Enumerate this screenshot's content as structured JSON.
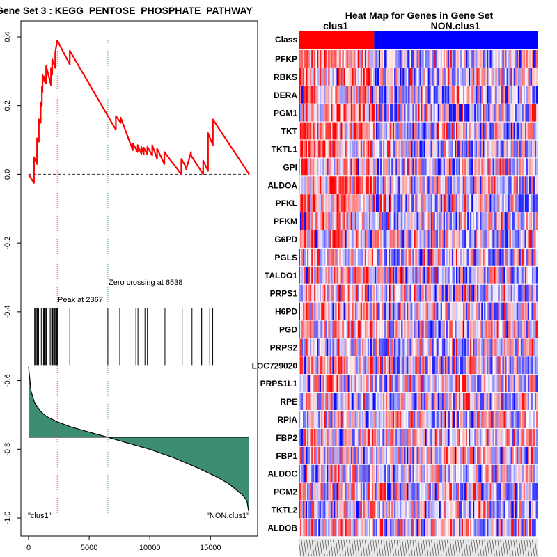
{
  "chart_data": [
    {
      "type": "line",
      "title": "Gene Set  3 : KEGG_PENTOSE_PHOSPHATE_PATHWAY",
      "xlim": [
        0,
        18200
      ],
      "ylim": [
        -1.0,
        0.4
      ],
      "x_ticks": [
        0,
        5000,
        10000,
        15000
      ],
      "y_ticks": [
        -1.0,
        -0.8,
        -0.6,
        -0.4,
        -0.2,
        0.0,
        0.2,
        0.4
      ],
      "running_es": {
        "x": [
          0,
          450,
          450,
          700,
          700,
          850,
          850,
          1000,
          1000,
          1100,
          1100,
          1150,
          1150,
          1300,
          1300,
          1450,
          1450,
          1850,
          1850,
          1950,
          1950,
          2200,
          2200,
          2367,
          2367,
          3400,
          3400,
          6538,
          7200,
          7200,
          7600,
          7600,
          8600,
          8600,
          9000,
          9000,
          9300,
          9300,
          9500,
          9500,
          9800,
          9800,
          10200,
          10200,
          10600,
          10600,
          11200,
          11200,
          12600,
          12600,
          13000,
          13000,
          13400,
          13400,
          14400,
          14400,
          14800,
          14800,
          15200,
          15200,
          18200
        ],
        "y": [
          0.0,
          -0.025,
          0.05,
          0.03,
          0.105,
          0.095,
          0.16,
          0.15,
          0.21,
          0.2,
          0.255,
          0.24,
          0.29,
          0.27,
          0.285,
          0.265,
          0.315,
          0.26,
          0.31,
          0.29,
          0.335,
          0.31,
          0.355,
          0.39,
          0.39,
          0.32,
          0.36,
          0.17,
          0.13,
          0.17,
          0.15,
          0.165,
          0.07,
          0.09,
          0.065,
          0.085,
          0.06,
          0.08,
          0.058,
          0.078,
          0.058,
          0.08,
          0.055,
          0.085,
          0.045,
          0.075,
          0.03,
          0.065,
          0.0,
          0.045,
          0.02,
          0.015,
          0.065,
          0.055,
          0.0,
          0.04,
          0.01,
          0.12,
          0.085,
          0.16,
          0.0
        ]
      },
      "baseline_y": 0.0,
      "peak": {
        "x": 2367,
        "label": "Peak at 2367"
      },
      "zero_crossing": {
        "x": 6538,
        "label": "Zero crossing at 6538"
      },
      "hits": [
        500,
        560,
        640,
        720,
        830,
        1050,
        1120,
        1230,
        1290,
        1420,
        1460,
        1520,
        1720,
        1830,
        1980,
        2060,
        2160,
        2230,
        2290,
        2340,
        2380,
        3400,
        6540,
        7520,
        8850,
        9020,
        9600,
        9800,
        10420,
        11250,
        12670,
        13480,
        14230,
        14280,
        14940,
        15190
      ],
      "hits_band": [
        -0.39,
        -0.555
      ],
      "ranked_metric": {
        "baseline_y": -0.765,
        "x": [
          0,
          200,
          500,
          1000,
          1500,
          2367,
          3500,
          5000,
          6538,
          8000,
          10000,
          12000,
          14000,
          15500,
          16500,
          17200,
          17700,
          18000,
          18150
        ],
        "y": [
          -0.56,
          -0.63,
          -0.665,
          -0.69,
          -0.705,
          -0.72,
          -0.735,
          -0.75,
          -0.765,
          -0.78,
          -0.8,
          -0.825,
          -0.855,
          -0.88,
          -0.9,
          -0.92,
          -0.935,
          -0.95,
          -0.98
        ]
      },
      "corner_labels": {
        "left": "\"clus1\"",
        "right": "\"NON.clus1\""
      },
      "colors": {
        "es": "#ff0000",
        "peak_line": "#ff3333",
        "zero_line": "#33aa33",
        "fill": "#3d8c74",
        "hit": "#000000"
      }
    },
    {
      "type": "heatmap",
      "title": "Heat Map for Genes in Gene Set",
      "class_label": "Class",
      "class_names": [
        "clus1",
        "NON.clus1"
      ],
      "class_split_fraction": 0.316,
      "genes": [
        "PFKP",
        "RBKS",
        "DERA",
        "PGM1",
        "TKT",
        "TKTL1",
        "GPI",
        "ALDOA",
        "PFKL",
        "PFKM",
        "G6PD",
        "PGLS",
        "TALDO1",
        "PRPS1",
        "H6PD",
        "PGD",
        "PRPS2",
        "LOC729020",
        "PRPS1L1",
        "RPE",
        "RPIA",
        "FBP2",
        "FBP1",
        "ALDOC",
        "PGM2",
        "TKTL2",
        "ALDOB"
      ],
      "colors": {
        "high": "#ff0000",
        "low": "#0000ff",
        "class1": "#ff0000",
        "class2": "#0000ff"
      }
    }
  ]
}
